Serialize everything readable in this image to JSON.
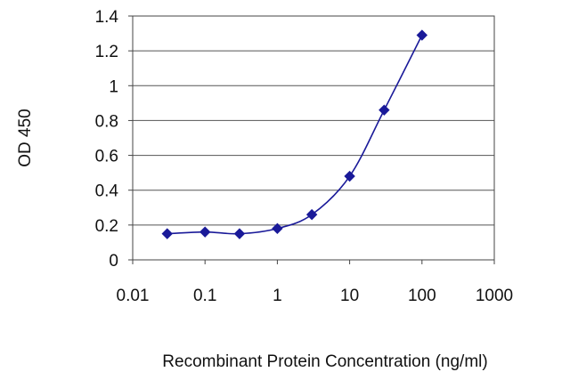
{
  "chart_data": {
    "type": "line",
    "xscale": "log",
    "xlim": [
      0.01,
      1000
    ],
    "ylim": [
      0,
      1.4
    ],
    "xticks": [
      0.01,
      0.1,
      1,
      10,
      100,
      1000
    ],
    "xtick_labels": [
      "0.01",
      "0.1",
      "1",
      "10",
      "100",
      "1000"
    ],
    "yticks": [
      0,
      0.2,
      0.4,
      0.6,
      0.8,
      1,
      1.2,
      1.4
    ],
    "ytick_labels": [
      "0",
      "0.2",
      "0.4",
      "0.6",
      "0.8",
      "1",
      "1.2",
      "1.4"
    ],
    "xlabel": "Recombinant Protein Concentration (ng/ml)",
    "ylabel": "OD 450",
    "grid": "horizontal",
    "legend": "none",
    "series": [
      {
        "color": "#1a1a99",
        "marker": "diamond",
        "x": [
          0.03,
          0.1,
          0.3,
          1,
          3,
          10,
          30,
          100
        ],
        "y": [
          0.15,
          0.16,
          0.15,
          0.18,
          0.26,
          0.48,
          0.86,
          1.29
        ]
      }
    ]
  }
}
